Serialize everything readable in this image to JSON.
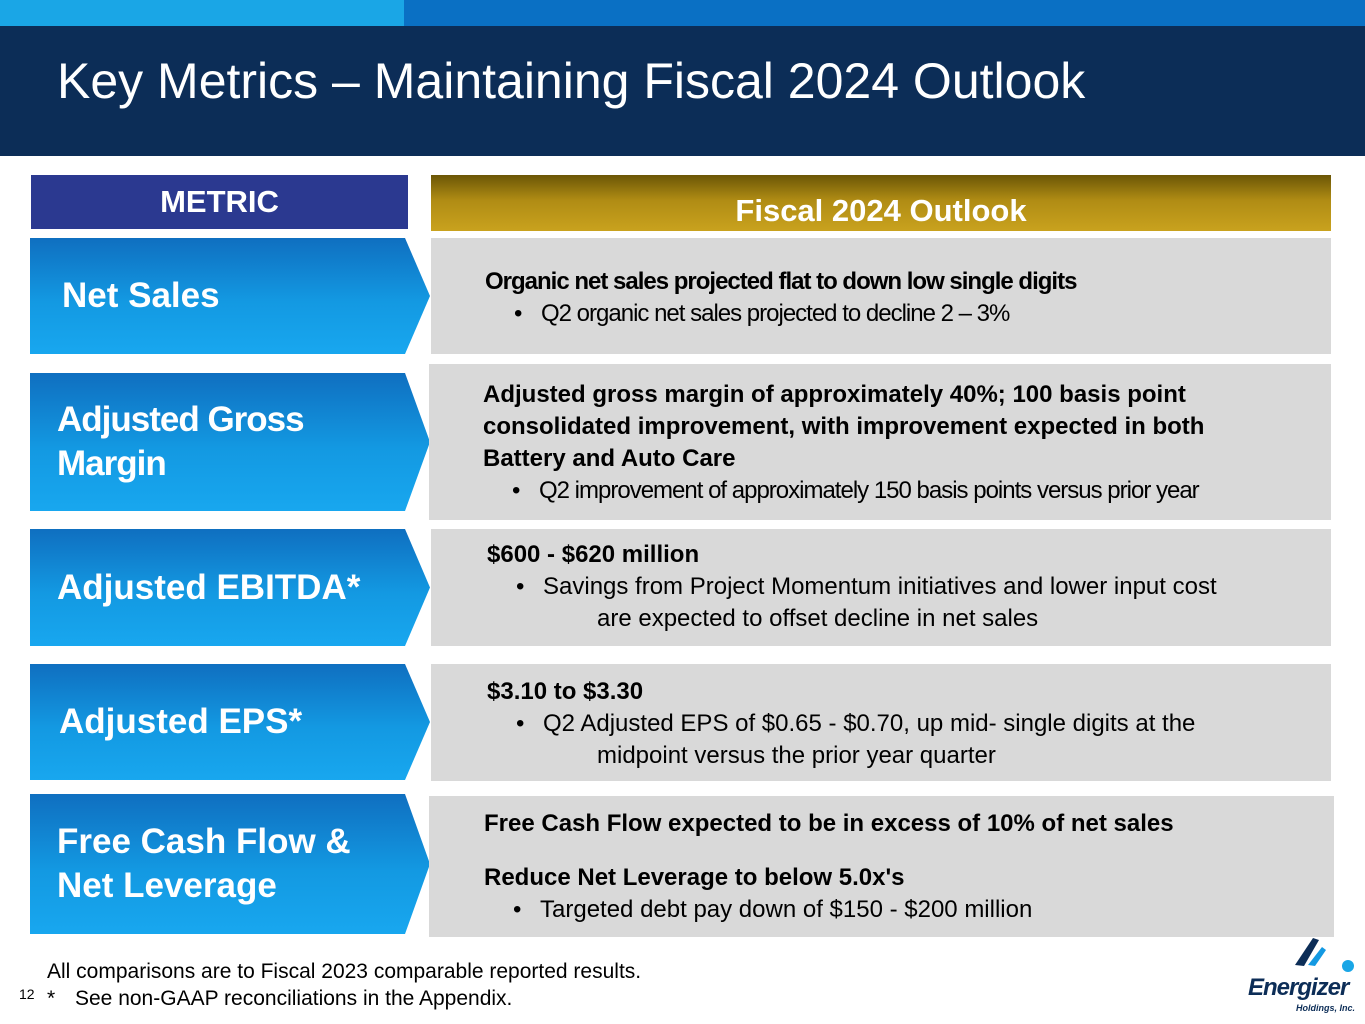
{
  "title": "Key Metrics – Maintaining Fiscal 2024 Outlook",
  "headers": {
    "metric": "METRIC",
    "outlook": "Fiscal 2024 Outlook"
  },
  "rows": [
    {
      "metric": "Net Sales",
      "headline": "Organic net sales projected flat to down low single digits",
      "bullets": [
        "Q2 organic net sales projected to decline 2 – 3%"
      ]
    },
    {
      "metric_lines": [
        "Adjusted Gross",
        "Margin"
      ],
      "headline_lines": [
        "Adjusted gross margin of approximately 40%; 100 basis point",
        "consolidated improvement, with improvement expected in both",
        "Battery and Auto Care"
      ],
      "bullets": [
        "Q2 improvement of approximately 150 basis points versus prior year"
      ]
    },
    {
      "metric": "Adjusted EBITDA*",
      "headline": "$600 - $620 million",
      "bullet_lines": [
        "Savings from Project Momentum initiatives and lower input cost",
        "are expected to offset decline in net sales"
      ]
    },
    {
      "metric": "Adjusted EPS*",
      "headline": "$3.10 to $3.30",
      "bullet_lines": [
        "Q2 Adjusted EPS of $0.65 - $0.70, up mid- single digits at the",
        "midpoint versus the prior year quarter"
      ]
    },
    {
      "metric_lines": [
        "Free Cash Flow &",
        "Net Leverage"
      ],
      "headline": "Free Cash Flow expected to be in excess of 10% of net sales",
      "headline2": "Reduce Net Leverage to below 5.0x's",
      "bullets": [
        "Targeted debt pay down of $150 - $200 million"
      ]
    }
  ],
  "footnotes": {
    "line1": "All comparisons are to Fiscal 2023 comparable reported results.",
    "asterisk": "*",
    "line2": "See non-GAAP reconciliations in the Appendix."
  },
  "page_number": "12",
  "logo": {
    "name": "Energizer",
    "sub": "Holdings, Inc."
  },
  "colors": {
    "navy": "#0c2d57",
    "blue": "#1399e2",
    "gold": "#b08c14",
    "panel": "#d9d9d9"
  }
}
